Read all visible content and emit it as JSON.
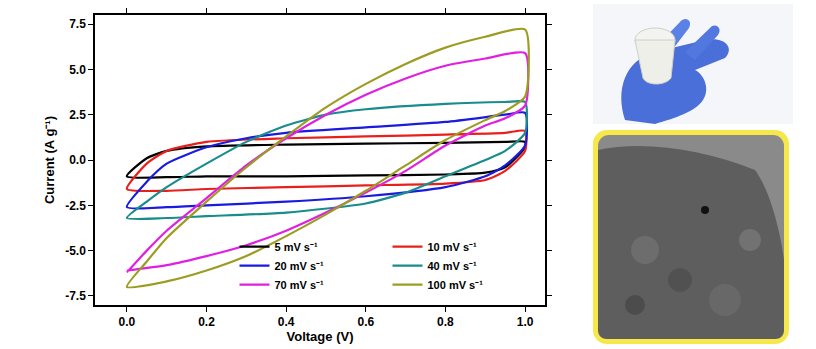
{
  "chart_data": {
    "type": "line",
    "xlabel": "Voltage (V)",
    "ylabel": "Current (A g⁻¹)",
    "xlim": [
      -0.08,
      1.05
    ],
    "ylim": [
      -8,
      8
    ],
    "xticks": [
      {
        "value": 0,
        "label": "0.0"
      },
      0.2,
      0.4,
      0.6,
      0.8,
      {
        "value": 1,
        "label": "1.0"
      }
    ],
    "yticks": [
      -7.5,
      {
        "value": -5,
        "label": "-5.0"
      },
      -2.5,
      {
        "value": 0,
        "label": "0.0"
      },
      2.5,
      {
        "value": 5,
        "label": "5.0"
      },
      7.5
    ],
    "legend": "lower right",
    "grid": false,
    "series": [
      {
        "name": "5 mV s⁻¹",
        "color": "#000000",
        "x": [
          0,
          0.05,
          0.1,
          0.2,
          0.4,
          0.6,
          0.8,
          0.95,
          1.0,
          1.0,
          0.95,
          0.9,
          0.8,
          0.6,
          0.4,
          0.2,
          0.1,
          0
        ],
        "values": [
          -0.9,
          0.1,
          0.5,
          0.75,
          0.85,
          0.9,
          0.95,
          1.0,
          1.0,
          0.7,
          -0.4,
          -0.7,
          -0.8,
          -0.85,
          -0.9,
          -0.9,
          -0.95,
          -0.9
        ]
      },
      {
        "name": "10 mV s⁻¹",
        "color": "#e8201c",
        "x": [
          0,
          0.05,
          0.1,
          0.2,
          0.4,
          0.6,
          0.8,
          0.95,
          1.0,
          1.0,
          0.95,
          0.9,
          0.8,
          0.6,
          0.4,
          0.2,
          0.1,
          0
        ],
        "values": [
          -1.6,
          -0.2,
          0.5,
          1.0,
          1.2,
          1.3,
          1.4,
          1.5,
          1.6,
          0.5,
          -0.6,
          -1.1,
          -1.3,
          -1.4,
          -1.5,
          -1.6,
          -1.7,
          -1.6
        ]
      },
      {
        "name": "20 mV s⁻¹",
        "color": "#1a1ae0",
        "x": [
          0,
          0.05,
          0.1,
          0.2,
          0.3,
          0.4,
          0.6,
          0.8,
          0.95,
          1.0,
          1.0,
          0.95,
          0.9,
          0.8,
          0.6,
          0.4,
          0.2,
          0.1,
          0
        ],
        "values": [
          -2.6,
          -1.2,
          -0.2,
          0.7,
          1.2,
          1.5,
          1.8,
          2.1,
          2.5,
          2.6,
          0.8,
          -0.3,
          -0.9,
          -1.5,
          -2.0,
          -2.3,
          -2.5,
          -2.6,
          -2.6
        ]
      },
      {
        "name": "40 mV s⁻¹",
        "color": "#1a8c8c",
        "x": [
          0,
          0.05,
          0.1,
          0.2,
          0.3,
          0.4,
          0.5,
          0.6,
          0.8,
          0.95,
          1.0,
          1.0,
          0.95,
          0.9,
          0.8,
          0.7,
          0.6,
          0.4,
          0.2,
          0.1,
          0
        ],
        "values": [
          -3.2,
          -2.3,
          -1.5,
          -0.2,
          1.0,
          1.9,
          2.5,
          2.8,
          3.1,
          3.2,
          3.2,
          1.5,
          0.5,
          0,
          -0.9,
          -1.8,
          -2.4,
          -2.9,
          -3.1,
          -3.2,
          -3.2
        ]
      },
      {
        "name": "70 mV s⁻¹",
        "color": "#e020e0",
        "x": [
          0,
          0.05,
          0.1,
          0.2,
          0.3,
          0.4,
          0.5,
          0.6,
          0.7,
          0.8,
          0.9,
          1.0,
          1.0,
          0.95,
          0.9,
          0.8,
          0.7,
          0.6,
          0.5,
          0.4,
          0.3,
          0.2,
          0.1,
          0
        ],
        "values": [
          -6.2,
          -5.0,
          -3.9,
          -2.1,
          -0.3,
          1.2,
          2.5,
          3.6,
          4.5,
          5.2,
          5.6,
          5.9,
          3.0,
          2.3,
          1.9,
          0.8,
          -0.6,
          -1.8,
          -2.9,
          -3.9,
          -4.7,
          -5.3,
          -5.8,
          -6.1
        ]
      },
      {
        "name": "100 mV s⁻¹",
        "color": "#9c9c22",
        "x": [
          0,
          0.05,
          0.1,
          0.2,
          0.3,
          0.4,
          0.5,
          0.6,
          0.7,
          0.8,
          0.9,
          1.0,
          1.0,
          0.95,
          0.9,
          0.8,
          0.7,
          0.6,
          0.5,
          0.4,
          0.3,
          0.2,
          0.1,
          0
        ],
        "values": [
          -7.0,
          -5.6,
          -4.3,
          -2.3,
          -0.4,
          1.3,
          2.9,
          4.2,
          5.3,
          6.2,
          6.8,
          7.2,
          3.5,
          2.7,
          2.2,
          1.1,
          -0.3,
          -1.7,
          -3.0,
          -4.2,
          -5.3,
          -6.1,
          -6.7,
          -7.0
        ]
      }
    ]
  }
}
